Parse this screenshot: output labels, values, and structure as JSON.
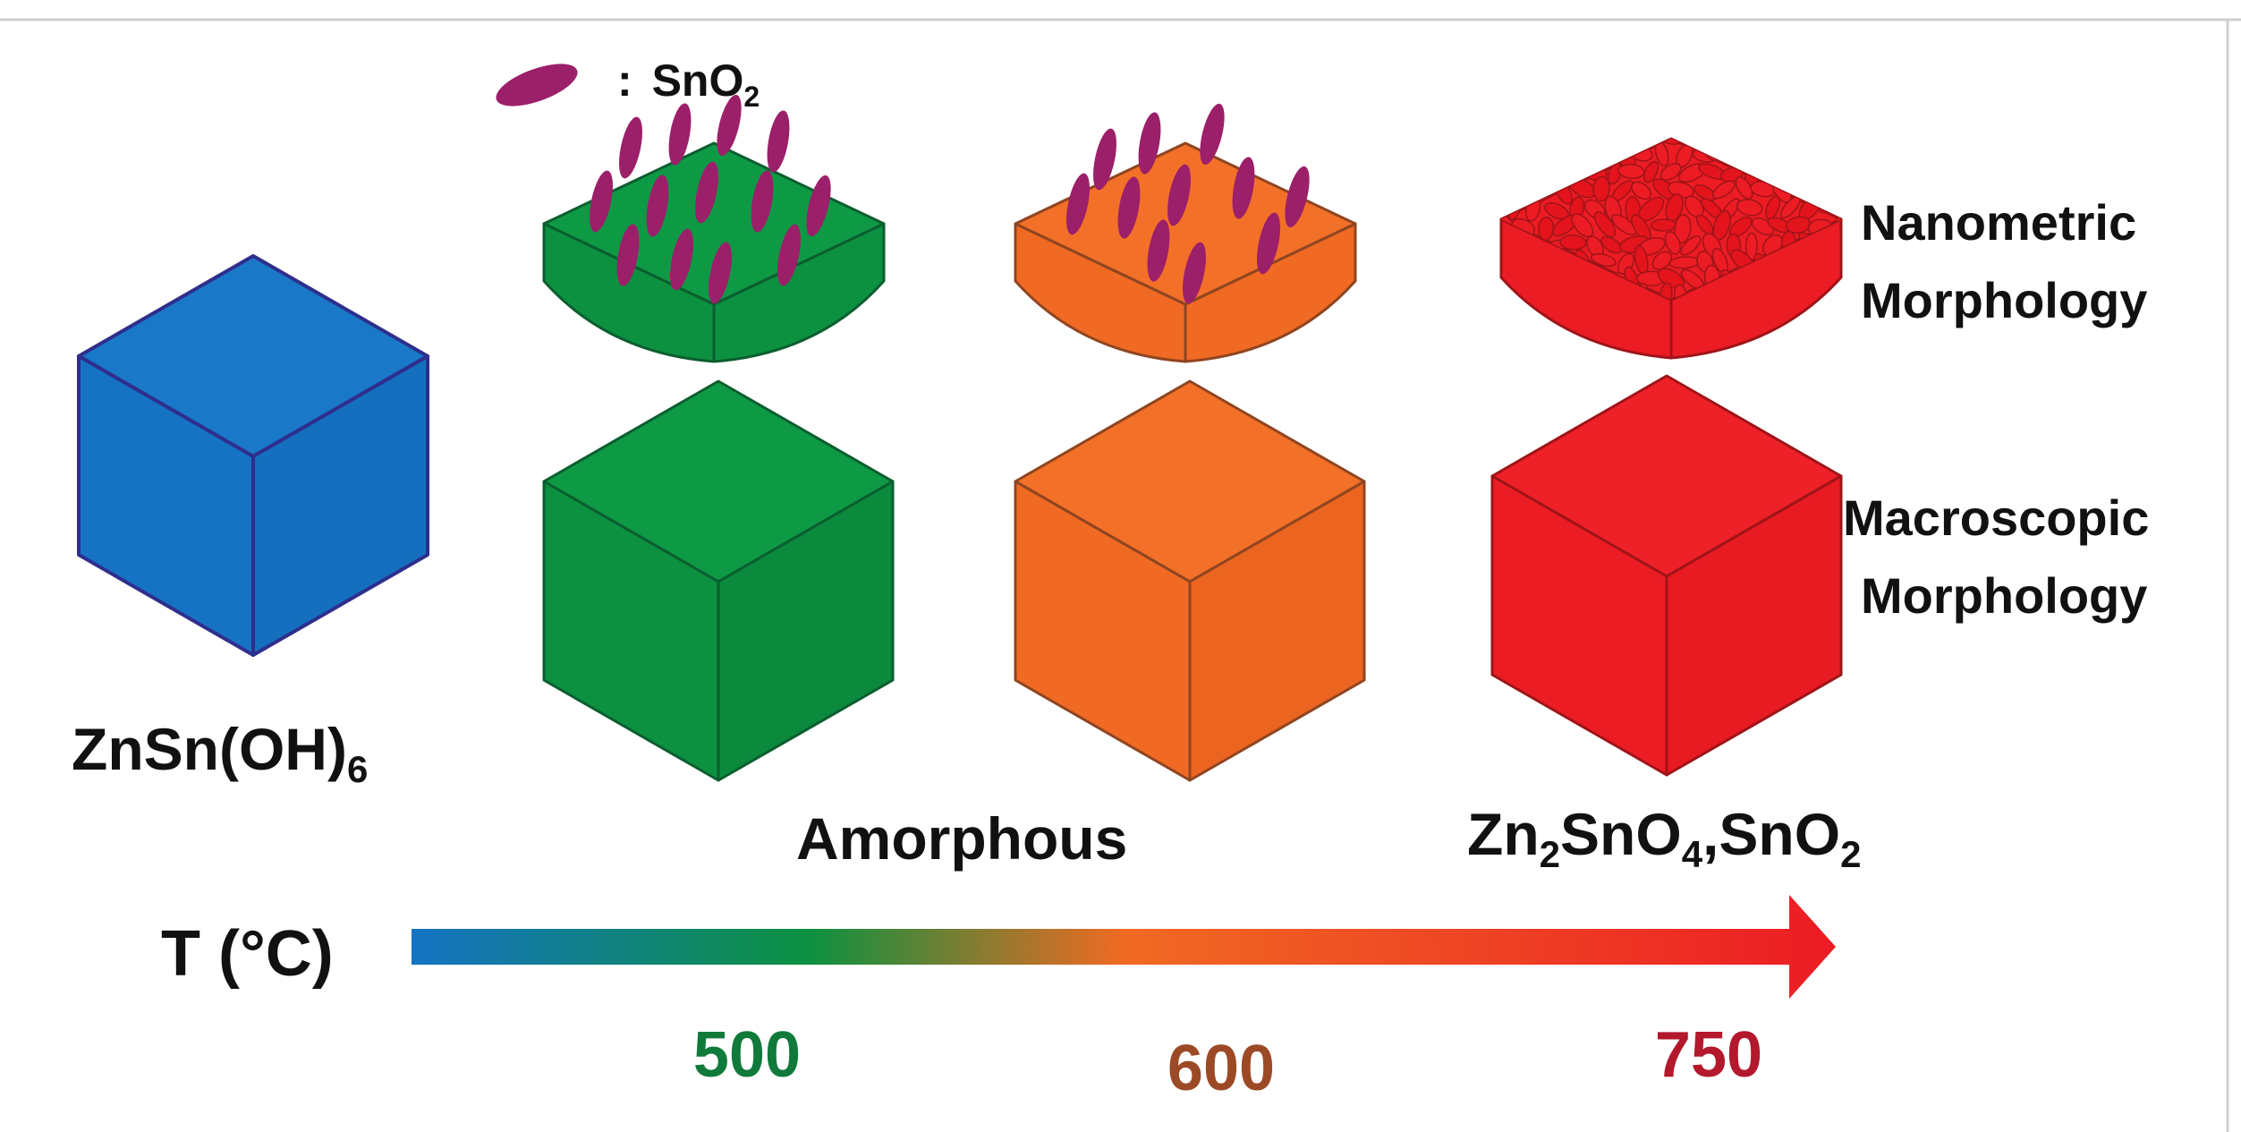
{
  "legend": {
    "symbol": ":",
    "label": "SnO",
    "label_sub": "2",
    "symbol_color": "#9c1f6a"
  },
  "precursor": {
    "label": "ZnSn(OH)",
    "label_sub": "6",
    "color": "#1673c4",
    "edge": "#2e2e8c"
  },
  "stages": [
    {
      "temperature": "500",
      "color": "#0c9140",
      "edge": "#0a5e2f",
      "text_color": "#0f7a3a"
    },
    {
      "temperature": "600",
      "color": "#f06a23",
      "edge": "#8f4520",
      "text_color": "#9c4a26"
    },
    {
      "temperature": "750",
      "color": "#ec1c24",
      "edge": "#9e1418",
      "text_color": "#b3182c"
    }
  ],
  "phase_labels": {
    "amorphous": "Amorphous",
    "crystalline": {
      "p1": "Zn",
      "s1": "2",
      "p2": "SnO",
      "s2": "4",
      "p3": ",SnO",
      "s3": "2"
    }
  },
  "row_labels": {
    "nanometric": [
      "Nanometric",
      "Morphology"
    ],
    "macroscopic": [
      "Macroscopic",
      "Morphology"
    ]
  },
  "axis": {
    "label": "T (°C)",
    "gradient": [
      "#1673c4",
      "#0c9140",
      "#f06a23",
      "#ec1c24"
    ]
  }
}
